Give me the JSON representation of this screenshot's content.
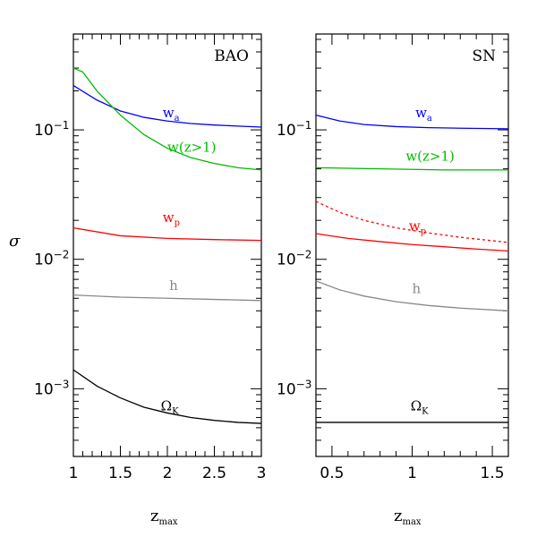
{
  "figure": {
    "ylabel": "σ",
    "xlabel": "z",
    "xlabel_sub": "max"
  },
  "chart_data": [
    {
      "type": "line",
      "panel_label": "BAO",
      "xlabel": "z_max",
      "ylabel": "σ",
      "yscale": "log",
      "xlim": [
        1,
        3
      ],
      "ylim": [
        0.0003,
        0.55
      ],
      "x_ticks": [
        1,
        1.5,
        2,
        2.5,
        3
      ],
      "x_tick_labels": [
        "1",
        "1.5",
        "2",
        "2.5",
        "3"
      ],
      "y_ticks": [
        0.001,
        0.01,
        0.1
      ],
      "grid": false,
      "series": [
        {
          "name": "w_a",
          "label_main": "w",
          "label_sub": "a",
          "color": "#0000ff",
          "x": [
            1.0,
            1.25,
            1.5,
            1.75,
            2.0,
            2.25,
            2.5,
            2.75,
            3.0
          ],
          "y": [
            0.22,
            0.17,
            0.14,
            0.125,
            0.117,
            0.112,
            0.109,
            0.107,
            0.105
          ],
          "label_pos": [
            1.95,
            0.125
          ]
        },
        {
          "name": "w(z>1)",
          "label_main": "w(z>1)",
          "label_sub": "",
          "color": "#00bb00",
          "x": [
            1.0,
            1.1,
            1.25,
            1.5,
            1.75,
            2.0,
            2.25,
            2.5,
            2.75,
            3.0
          ],
          "y": [
            0.3,
            0.28,
            0.2,
            0.13,
            0.092,
            0.072,
            0.061,
            0.055,
            0.051,
            0.049
          ],
          "label_pos": [
            2.0,
            0.068
          ]
        },
        {
          "name": "w_p",
          "label_main": "w",
          "label_sub": "p",
          "color": "#ff0000",
          "x": [
            1.0,
            1.5,
            2.0,
            2.5,
            3.0
          ],
          "y": [
            0.0175,
            0.0152,
            0.0145,
            0.0142,
            0.014
          ],
          "label_pos": [
            1.95,
            0.0195
          ]
        },
        {
          "name": "h",
          "label_main": "h",
          "label_sub": "",
          "color": "#888888",
          "x": [
            1.0,
            1.5,
            2.0,
            2.5,
            3.0
          ],
          "y": [
            0.0053,
            0.0051,
            0.005,
            0.0049,
            0.0048
          ],
          "label_pos": [
            2.02,
            0.0058
          ]
        },
        {
          "name": "Ω_K",
          "label_main": "Ω",
          "label_sub": "K",
          "color": "#000000",
          "x": [
            1.0,
            1.25,
            1.5,
            1.75,
            2.0,
            2.25,
            2.5,
            2.75,
            3.0
          ],
          "y": [
            0.0014,
            0.00105,
            0.00085,
            0.00072,
            0.00065,
            0.0006,
            0.00057,
            0.00055,
            0.00054
          ],
          "label_pos": [
            1.93,
            0.00068
          ]
        }
      ]
    },
    {
      "type": "line",
      "panel_label": "SN",
      "xlabel": "z_max",
      "ylabel": "σ",
      "yscale": "log",
      "xlim": [
        0.4,
        1.6
      ],
      "ylim": [
        0.0003,
        0.55
      ],
      "x_ticks": [
        0.5,
        1,
        1.5
      ],
      "x_tick_labels": [
        "0.5",
        "1",
        "1.5"
      ],
      "y_ticks": [
        0.001,
        0.01,
        0.1
      ],
      "grid": false,
      "series": [
        {
          "name": "w_a",
          "label_main": "w",
          "label_sub": "a",
          "color": "#0000ff",
          "x": [
            0.4,
            0.55,
            0.7,
            0.9,
            1.1,
            1.3,
            1.6
          ],
          "y": [
            0.13,
            0.117,
            0.11,
            0.106,
            0.104,
            0.103,
            0.102
          ],
          "label_pos": [
            1.02,
            0.125
          ]
        },
        {
          "name": "w(z>1)",
          "label_main": "w(z>1)",
          "label_sub": "",
          "color": "#00bb00",
          "x": [
            0.4,
            0.8,
            1.2,
            1.6
          ],
          "y": [
            0.051,
            0.05,
            0.049,
            0.049
          ],
          "label_pos": [
            0.96,
            0.058
          ]
        },
        {
          "name": "w_p (dashed)",
          "label_main": "",
          "label_sub": "",
          "color": "#ff0000",
          "dashed": true,
          "x": [
            0.4,
            0.55,
            0.7,
            0.9,
            1.1,
            1.3,
            1.6
          ],
          "y": [
            0.028,
            0.023,
            0.02,
            0.0175,
            0.016,
            0.0148,
            0.0135
          ]
        },
        {
          "name": "w_p",
          "label_main": "w",
          "label_sub": "p",
          "color": "#ff0000",
          "x": [
            0.4,
            0.6,
            0.8,
            1.0,
            1.2,
            1.4,
            1.6
          ],
          "y": [
            0.0158,
            0.0145,
            0.0137,
            0.013,
            0.0125,
            0.012,
            0.0116
          ],
          "label_pos": [
            0.98,
            0.0167
          ]
        },
        {
          "name": "h",
          "label_main": "h",
          "label_sub": "",
          "color": "#888888",
          "x": [
            0.4,
            0.55,
            0.7,
            0.9,
            1.1,
            1.3,
            1.6
          ],
          "y": [
            0.0068,
            0.0058,
            0.0052,
            0.0047,
            0.0044,
            0.0042,
            0.004
          ],
          "label_pos": [
            1.0,
            0.0055
          ]
        },
        {
          "name": "Ω_K",
          "label_main": "Ω",
          "label_sub": "K",
          "color": "#000000",
          "x": [
            0.4,
            1.0,
            1.6
          ],
          "y": [
            0.00055,
            0.00055,
            0.00055
          ],
          "label_pos": [
            0.99,
            0.00068
          ]
        }
      ]
    }
  ]
}
